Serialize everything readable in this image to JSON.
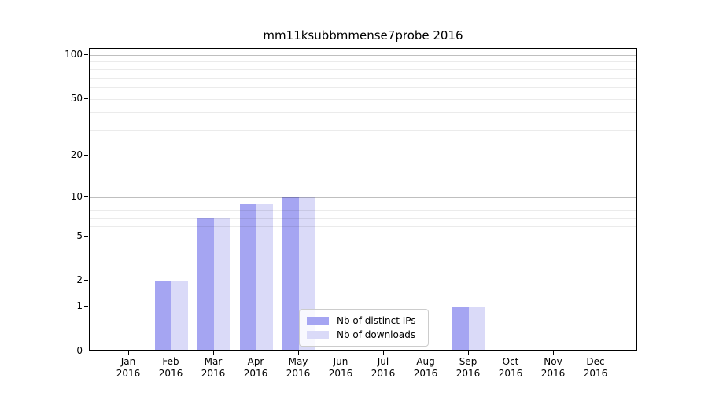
{
  "chart_data": {
    "type": "bar",
    "title": "mm11ksubbmmense7probe 2016",
    "categories": [
      "Jan 2016",
      "Feb 2016",
      "Mar 2016",
      "Apr 2016",
      "May 2016",
      "Jun 2016",
      "Jul 2016",
      "Aug 2016",
      "Sep 2016",
      "Oct 2016",
      "Nov 2016",
      "Dec 2016"
    ],
    "series": [
      {
        "name": "Nb of distinct IPs",
        "key": "distinct-ips",
        "color": "#a5a5f2",
        "values": [
          0,
          2,
          7,
          9,
          10,
          0,
          0,
          0,
          1,
          0,
          0,
          0
        ]
      },
      {
        "name": "Nb of downloads",
        "key": "downloads",
        "color": "#dadaf8",
        "values": [
          0,
          2,
          7,
          9,
          10,
          0,
          0,
          0,
          1,
          0,
          0,
          0
        ]
      }
    ],
    "xlabel": "",
    "ylabel": "",
    "y_scale": "log1p",
    "ylim": [
      0,
      110
    ],
    "y_ticks": [
      0,
      1,
      2,
      5,
      10,
      20,
      50,
      100
    ],
    "y_major_gridlines": [
      1,
      10,
      100
    ],
    "y_minor_gridlines": [
      2,
      3,
      4,
      5,
      6,
      7,
      8,
      9,
      20,
      30,
      40,
      50,
      60,
      70,
      80,
      90
    ],
    "grid": true,
    "legend_position": "lower center"
  },
  "style": {
    "bar_color_distinct_ips": "#a5a5f2",
    "bar_color_downloads": "#dadaf8",
    "grid_major_color": "rgba(0,0,0,0.25)",
    "grid_minor_color": "rgba(0,0,0,0.08)",
    "spine_color": "#000000",
    "legend_border_color": "#cccccc",
    "legend_background": "rgba(255,255,255,0.8)"
  }
}
